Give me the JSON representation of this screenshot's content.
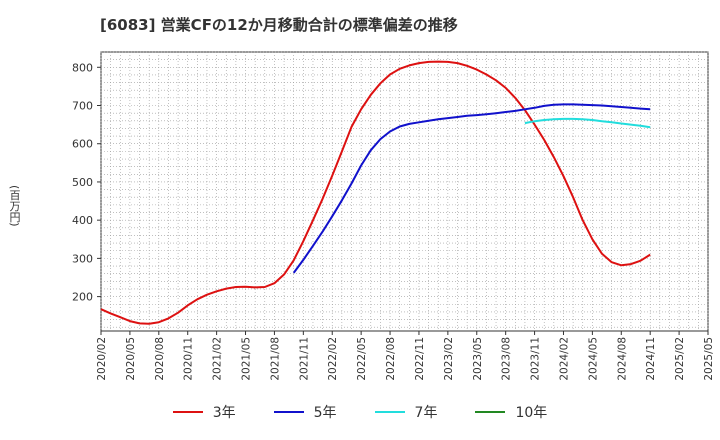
{
  "chart_data": {
    "type": "line",
    "title": "[6083]  営業CFの12か月移動合計の標準偏差の推移",
    "ylabel": "(百万円)",
    "xlabel": "",
    "ylim": [
      110,
      840
    ],
    "yticks": [
      200,
      300,
      400,
      500,
      600,
      700,
      800
    ],
    "xticks": [
      "2020/02",
      "2020/05",
      "2020/08",
      "2020/11",
      "2021/02",
      "2021/05",
      "2021/08",
      "2021/11",
      "2022/02",
      "2022/05",
      "2022/08",
      "2022/11",
      "2023/02",
      "2023/05",
      "2023/08",
      "2023/11",
      "2024/02",
      "2024/05",
      "2024/08",
      "2024/11",
      "2025/02",
      "2025/05"
    ],
    "grid": true,
    "legend_position": "bottom",
    "series": [
      {
        "name": "3年",
        "color": "#dd1111",
        "x": [
          "2020/02",
          "2020/03",
          "2020/04",
          "2020/05",
          "2020/06",
          "2020/07",
          "2020/08",
          "2020/09",
          "2020/10",
          "2020/11",
          "2020/12",
          "2021/01",
          "2021/02",
          "2021/03",
          "2021/04",
          "2021/05",
          "2021/06",
          "2021/07",
          "2021/08",
          "2021/09",
          "2021/10",
          "2021/11",
          "2021/12",
          "2022/01",
          "2022/02",
          "2022/03",
          "2022/04",
          "2022/05",
          "2022/06",
          "2022/07",
          "2022/08",
          "2022/09",
          "2022/10",
          "2022/11",
          "2022/12",
          "2023/01",
          "2023/02",
          "2023/03",
          "2023/04",
          "2023/05",
          "2023/06",
          "2023/07",
          "2023/08",
          "2023/09",
          "2023/10",
          "2023/11",
          "2023/12",
          "2024/01",
          "2024/02",
          "2024/03",
          "2024/04",
          "2024/05",
          "2024/06",
          "2024/07",
          "2024/08",
          "2024/09",
          "2024/10",
          "2024/11"
        ],
        "values": [
          167,
          156,
          146,
          136,
          130,
          129,
          133,
          143,
          158,
          177,
          193,
          205,
          214,
          221,
          225,
          226,
          224,
          225,
          235,
          258,
          295,
          345,
          400,
          456,
          516,
          580,
          644,
          690,
          728,
          758,
          781,
          796,
          805,
          811,
          814,
          815,
          814,
          811,
          804,
          794,
          781,
          766,
          746,
          720,
          688,
          650,
          610,
          565,
          515,
          460,
          400,
          350,
          312,
          290,
          282,
          285,
          294,
          310
        ]
      },
      {
        "name": "5年",
        "color": "#1111cc",
        "x": [
          "2021/10",
          "2021/11",
          "2021/12",
          "2022/01",
          "2022/02",
          "2022/03",
          "2022/04",
          "2022/05",
          "2022/06",
          "2022/07",
          "2022/08",
          "2022/09",
          "2022/10",
          "2022/11",
          "2022/12",
          "2023/01",
          "2023/02",
          "2023/03",
          "2023/04",
          "2023/05",
          "2023/06",
          "2023/07",
          "2023/08",
          "2023/09",
          "2023/10",
          "2023/11",
          "2023/12",
          "2024/01",
          "2024/02",
          "2024/03",
          "2024/04",
          "2024/05",
          "2024/06",
          "2024/07",
          "2024/08",
          "2024/09",
          "2024/10",
          "2024/11"
        ],
        "values": [
          262,
          296,
          333,
          370,
          410,
          452,
          496,
          543,
          583,
          612,
          632,
          645,
          652,
          656,
          660,
          664,
          667,
          670,
          673,
          675,
          677,
          680,
          683,
          686,
          690,
          694,
          699,
          702,
          703,
          703,
          702,
          701,
          700,
          698,
          696,
          694,
          692,
          690
        ]
      },
      {
        "name": "7年",
        "color": "#22dddd",
        "x": [
          "2023/10",
          "2023/11",
          "2023/12",
          "2024/01",
          "2024/02",
          "2024/03",
          "2024/04",
          "2024/05",
          "2024/06",
          "2024/07",
          "2024/08",
          "2024/09",
          "2024/10",
          "2024/11"
        ],
        "values": [
          654,
          659,
          662,
          664,
          665,
          665,
          664,
          662,
          659,
          656,
          653,
          650,
          647,
          643
        ]
      },
      {
        "name": "10年",
        "color": "#228822",
        "x": [],
        "values": []
      }
    ]
  }
}
